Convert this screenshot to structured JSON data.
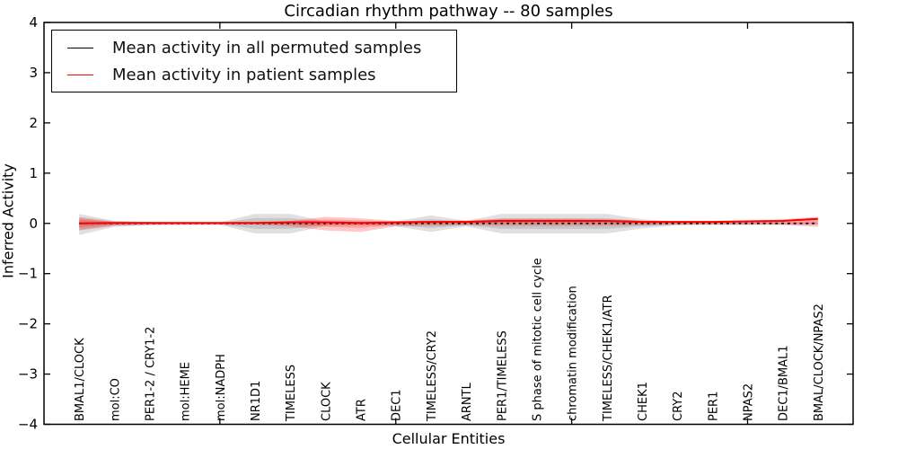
{
  "figure": {
    "title": "Circadian rhythm pathway -- 80 samples",
    "xlabel": "Cellular Entities",
    "ylabel": "Inferred Activity"
  },
  "legend": {
    "entries": [
      {
        "label": "Mean activity in all permuted samples",
        "color": "#000000"
      },
      {
        "label": "Mean activity in patient samples",
        "color": "#ff0000"
      }
    ]
  },
  "chart_data": {
    "type": "line",
    "title": "Circadian rhythm pathway -- 80 samples",
    "xlabel": "Cellular Entities",
    "ylabel": "Inferred Activity",
    "ylim": [
      -4,
      4
    ],
    "xlim": [
      0,
      23
    ],
    "grid": false,
    "legend_position": "upper left",
    "ytick_values": [
      4,
      3,
      2,
      1,
      0,
      -1,
      -2,
      -3,
      -4
    ],
    "ytick_labels": [
      "4",
      "3",
      "2",
      "1",
      "0",
      "−1",
      "−2",
      "−3",
      "−4"
    ],
    "xtick_values": [
      5,
      10,
      15,
      20
    ],
    "categories": [
      "BMAL1/CLOCK",
      "mol:CO",
      "PER1-2 / CRY1-2",
      "mol:HEME",
      "mol:NADPH",
      "NR1D1",
      "TIMELESS",
      "CLOCK",
      "ATR",
      "DEC1",
      "TIMELESS/CRY2",
      "ARNTL",
      "PER1/TIMELESS",
      "S phase of mitotic cell cycle",
      "chromatin modification",
      "TIMELESS/CHEK1/ATR",
      "CHEK1",
      "CRY2",
      "PER1",
      "NPAS2",
      "DEC1/BMAL1",
      "BMAL/CLOCK/NPAS2"
    ],
    "series": [
      {
        "name": "Mean activity in all permuted samples",
        "line_color": "#000000",
        "line_style": "dotted",
        "band_color": "#000000",
        "band_alpha": 0.12,
        "mean": [
          0,
          0,
          0,
          0,
          0,
          0,
          0,
          0,
          0,
          0,
          0,
          0,
          0,
          0,
          0,
          0,
          0,
          0,
          0,
          0,
          0,
          0
        ],
        "band_upper": [
          0.19,
          0.05,
          0.03,
          0.02,
          0.02,
          0.19,
          0.19,
          0.04,
          0.03,
          0.04,
          0.16,
          0.05,
          0.19,
          0.19,
          0.19,
          0.19,
          0.08,
          0.03,
          0.02,
          0.02,
          0.02,
          0.02
        ],
        "band_lower": [
          -0.23,
          -0.07,
          -0.04,
          -0.03,
          -0.03,
          -0.2,
          -0.2,
          -0.05,
          -0.04,
          -0.06,
          -0.17,
          -0.06,
          -0.2,
          -0.2,
          -0.2,
          -0.2,
          -0.1,
          -0.04,
          -0.03,
          -0.03,
          -0.03,
          -0.03
        ]
      },
      {
        "name": "Mean activity in patient samples",
        "line_color": "#ff0000",
        "line_style": "solid",
        "band_color": "#ff0000",
        "band_alpha": 0.22,
        "mean": [
          0.0,
          0.01,
          0.01,
          0.01,
          0.01,
          0.01,
          0.02,
          0.02,
          0.01,
          0.02,
          0.03,
          0.03,
          0.05,
          0.05,
          0.05,
          0.05,
          0.03,
          0.03,
          0.03,
          0.04,
          0.05,
          0.09
        ],
        "band_upper": [
          0.13,
          0.04,
          0.03,
          0.02,
          0.02,
          0.03,
          0.05,
          0.13,
          0.1,
          0.05,
          0.05,
          0.06,
          0.09,
          0.09,
          0.09,
          0.08,
          0.06,
          0.05,
          0.05,
          0.06,
          0.08,
          0.13
        ],
        "band_lower": [
          -0.14,
          -0.05,
          -0.03,
          -0.03,
          -0.03,
          -0.03,
          -0.06,
          -0.14,
          -0.17,
          -0.06,
          -0.05,
          -0.04,
          -0.05,
          -0.05,
          -0.05,
          -0.05,
          -0.04,
          -0.03,
          -0.03,
          -0.03,
          -0.03,
          -0.07
        ]
      }
    ]
  }
}
